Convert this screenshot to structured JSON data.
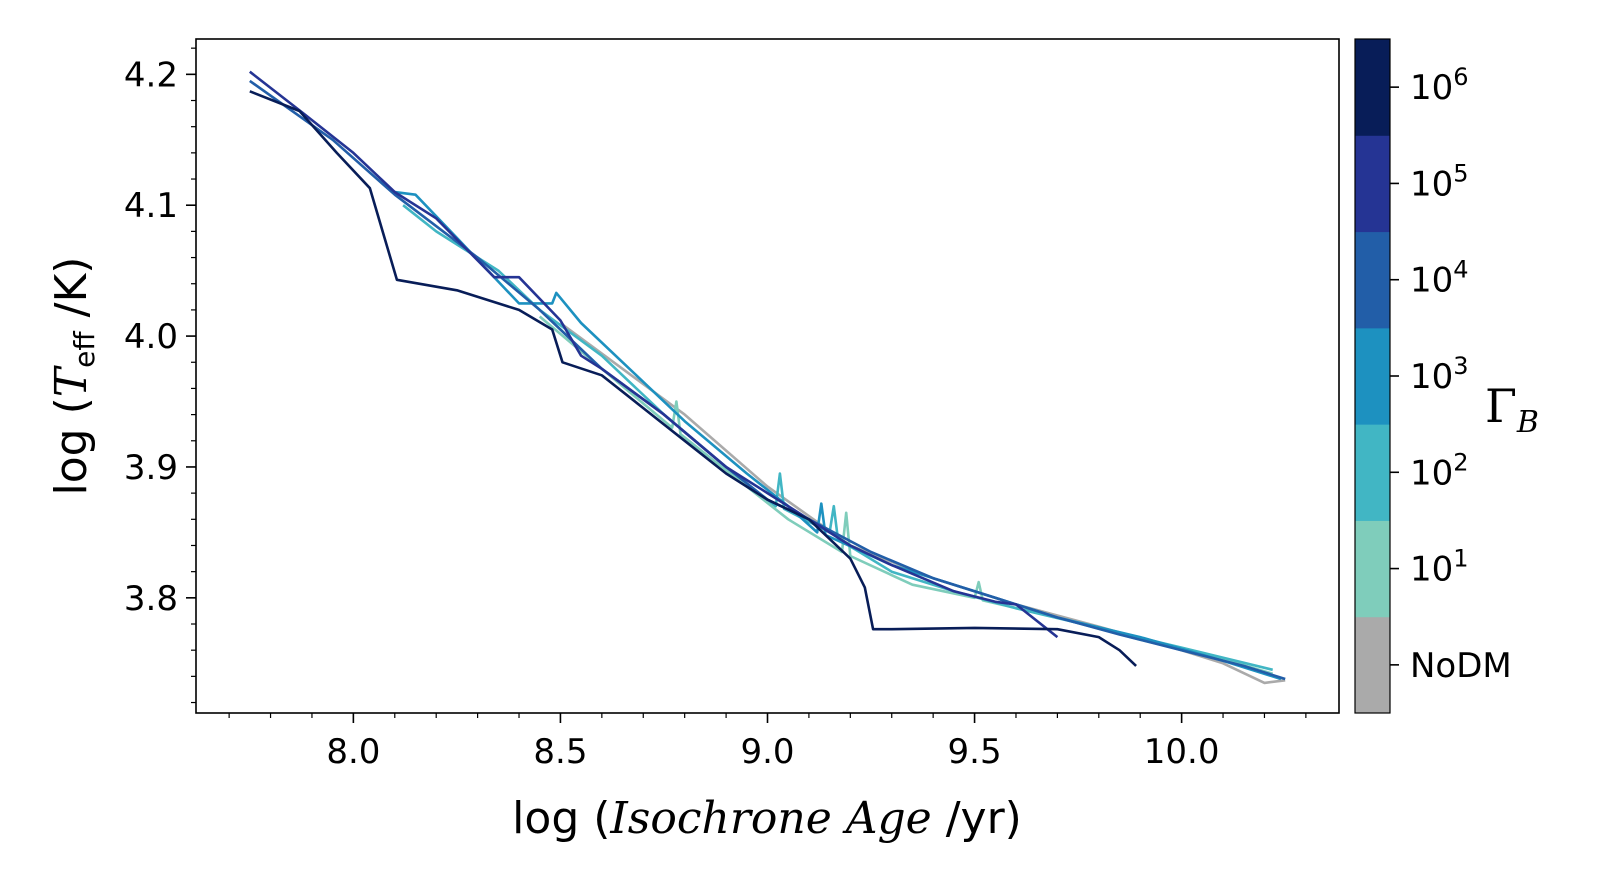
{
  "chart_data": {
    "type": "line",
    "xlabel": {
      "prefix": "log (",
      "italic": "Isochrone Age",
      "suffix": " /yr)"
    },
    "ylabel": {
      "prefix": "log (",
      "symbol": "T",
      "subscript": "eff",
      "suffix": " /K)"
    },
    "xlim": [
      7.62,
      10.38
    ],
    "ylim": [
      3.712,
      4.227
    ],
    "xticks": [
      8.0,
      8.5,
      9.0,
      9.5,
      10.0
    ],
    "xtick_labels": [
      "8.0",
      "8.5",
      "9.0",
      "9.5",
      "10.0"
    ],
    "yticks": [
      3.8,
      3.9,
      4.0,
      4.1,
      4.2
    ],
    "ytick_labels": [
      "3.8",
      "3.9",
      "4.0",
      "4.1",
      "4.2"
    ],
    "colorbar": {
      "label": "Γ",
      "label_sub": "B",
      "levels": [
        {
          "name": "NoDM",
          "color": "#aaaaaa",
          "tick": "NoDM"
        },
        {
          "name": "1e1",
          "color": "#7fcdbb",
          "tick_base": "10",
          "tick_exp": "1"
        },
        {
          "name": "1e2",
          "color": "#41b6c4",
          "tick_base": "10",
          "tick_exp": "2"
        },
        {
          "name": "1e3",
          "color": "#1d91c0",
          "tick_base": "10",
          "tick_exp": "3"
        },
        {
          "name": "1e4",
          "color": "#225ea8",
          "tick_base": "10",
          "tick_exp": "4"
        },
        {
          "name": "1e5",
          "color": "#253494",
          "tick_base": "10",
          "tick_exp": "5"
        },
        {
          "name": "1e6",
          "color": "#081d58",
          "tick_base": "10",
          "tick_exp": "6"
        }
      ]
    },
    "series": [
      {
        "name": "NoDM",
        "color": "#aaaaaa",
        "x": [
          8.5,
          8.8,
          9.0,
          9.2,
          9.4,
          9.6,
          9.8,
          10.0,
          10.1,
          10.2,
          10.25
        ],
        "y": [
          4.01,
          3.94,
          3.885,
          3.84,
          3.815,
          3.795,
          3.778,
          3.76,
          3.75,
          3.735,
          3.737
        ]
      },
      {
        "name": "1e1",
        "color": "#7fcdbb",
        "x": [
          8.45,
          8.6,
          8.77,
          8.78,
          8.79,
          8.95,
          9.05,
          9.18,
          9.19,
          9.2,
          9.35,
          9.5,
          9.51,
          9.52,
          9.7,
          9.9,
          10.1,
          10.22
        ],
        "y": [
          4.015,
          3.975,
          3.93,
          3.95,
          3.925,
          3.885,
          3.86,
          3.835,
          3.865,
          3.832,
          3.81,
          3.8,
          3.812,
          3.798,
          3.785,
          3.768,
          3.753,
          3.742
        ]
      },
      {
        "name": "1e2",
        "color": "#41b6c4",
        "x": [
          8.12,
          8.2,
          8.35,
          8.45,
          8.6,
          8.75,
          8.9,
          9.02,
          9.03,
          9.04,
          9.15,
          9.16,
          9.17,
          9.3,
          9.45,
          9.6,
          9.8,
          10.0,
          10.22
        ],
        "y": [
          4.1,
          4.08,
          4.05,
          4.02,
          3.985,
          3.94,
          3.9,
          3.87,
          3.895,
          3.868,
          3.85,
          3.87,
          3.845,
          3.82,
          3.805,
          3.792,
          3.777,
          3.762,
          3.745
        ]
      },
      {
        "name": "1e3",
        "color": "#1d91c0",
        "x": [
          8.1,
          8.15,
          8.25,
          8.4,
          8.48,
          8.49,
          8.55,
          8.65,
          8.8,
          8.95,
          9.05,
          9.12,
          9.13,
          9.14,
          9.3,
          9.5,
          9.7,
          9.9,
          10.1,
          10.24
        ],
        "y": [
          4.11,
          4.108,
          4.075,
          4.025,
          4.025,
          4.033,
          4.01,
          3.98,
          3.935,
          3.895,
          3.87,
          3.85,
          3.872,
          3.848,
          3.825,
          3.805,
          3.785,
          3.77,
          3.752,
          3.738
        ]
      },
      {
        "name": "1e4",
        "color": "#225ea8",
        "x": [
          7.75,
          7.95,
          8.1,
          8.3,
          8.45,
          8.5,
          8.6,
          8.75,
          8.9,
          9.0,
          9.1,
          9.25,
          9.4,
          9.55,
          9.7,
          9.85,
          10.0,
          10.15,
          10.25
        ],
        "y": [
          4.195,
          4.15,
          4.108,
          4.06,
          4.02,
          4.005,
          3.975,
          3.94,
          3.9,
          3.875,
          3.86,
          3.835,
          3.815,
          3.8,
          3.785,
          3.772,
          3.76,
          3.748,
          3.738
        ]
      },
      {
        "name": "1e5",
        "color": "#253494",
        "x": [
          7.75,
          7.88,
          8.0,
          8.1,
          8.2,
          8.34,
          8.4,
          8.5,
          8.55,
          8.6,
          8.75,
          8.9,
          9.0,
          9.1,
          9.2,
          9.3,
          9.45,
          9.55,
          9.6,
          9.7
        ],
        "y": [
          4.202,
          4.17,
          4.14,
          4.11,
          4.09,
          4.045,
          4.045,
          4.012,
          3.985,
          3.975,
          3.94,
          3.9,
          3.88,
          3.86,
          3.84,
          3.825,
          3.805,
          3.797,
          3.795,
          3.77
        ]
      },
      {
        "name": "1e6",
        "color": "#081d58",
        "x": [
          7.75,
          7.87,
          7.96,
          8.04,
          8.105,
          8.25,
          8.4,
          8.48,
          8.505,
          8.6,
          8.7,
          8.8,
          8.9,
          9.0,
          9.1,
          9.2,
          9.235,
          9.255,
          9.3,
          9.5,
          9.7,
          9.8,
          9.85,
          9.89
        ],
        "y": [
          4.187,
          4.172,
          4.14,
          4.113,
          4.043,
          4.035,
          4.02,
          4.005,
          3.98,
          3.97,
          3.945,
          3.92,
          3.895,
          3.875,
          3.86,
          3.83,
          3.808,
          3.776,
          3.776,
          3.777,
          3.776,
          3.77,
          3.76,
          3.748
        ]
      }
    ]
  }
}
